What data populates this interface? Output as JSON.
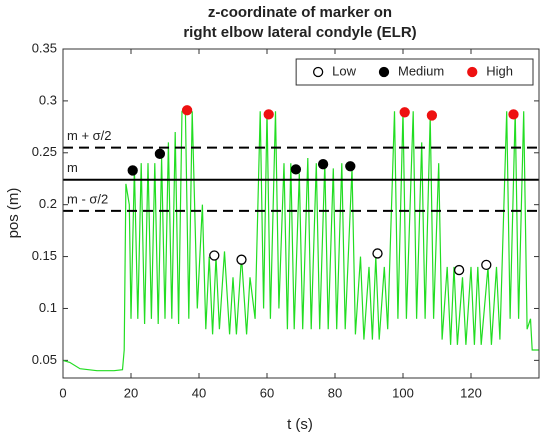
{
  "chart_data": {
    "type": "line",
    "title": [
      "z-coordinate of marker on",
      "right elbow lateral condyle (ELR)"
    ],
    "xlabel": "t (s)",
    "ylabel": "pos (m)",
    "xlim": [
      0,
      140
    ],
    "ylim": [
      0.033,
      0.35
    ],
    "xticks": [
      0,
      20,
      40,
      60,
      80,
      100,
      120
    ],
    "yticks": [
      0.05,
      0.1,
      0.15,
      0.2,
      0.25,
      0.3,
      0.35
    ],
    "legend": "upper right",
    "hlines": [
      {
        "label": "m + σ/2",
        "value": 0.255,
        "style": "dashed"
      },
      {
        "label": "m",
        "value": 0.224,
        "style": "solid"
      },
      {
        "label": "m - σ/2",
        "value": 0.194,
        "style": "dashed"
      }
    ],
    "series": [
      {
        "color": "#22dd22",
        "marker": "none",
        "x": [
          0,
          2,
          5,
          10,
          15,
          17.5,
          18,
          18.5,
          19.5,
          20,
          21,
          22,
          23,
          24,
          25,
          26,
          27,
          28,
          29,
          30,
          31,
          32,
          33,
          34,
          35,
          36,
          37,
          38,
          39.5,
          41,
          42,
          43,
          44,
          45,
          46,
          47.5,
          49,
          50,
          51,
          52.5,
          54,
          55,
          56.5,
          58,
          59,
          60,
          61,
          62.5,
          63.5,
          65,
          66,
          67,
          68,
          69.5,
          70.5,
          72,
          73,
          74.5,
          75.5,
          77,
          78,
          79.5,
          80.5,
          82,
          83,
          85,
          86,
          87.5,
          88.5,
          90,
          91,
          92,
          93,
          94.5,
          95.5,
          97.5,
          98.5,
          100,
          101,
          103,
          104,
          105.5,
          106.5,
          108,
          109,
          110.5,
          111.5,
          113,
          114,
          115,
          116,
          117.5,
          118.5,
          120,
          121,
          122,
          123,
          125,
          126,
          127.5,
          128.5,
          130.5,
          131.5,
          133,
          134,
          135.5,
          136.5,
          137.5,
          138,
          140
        ],
        "values": [
          0.05,
          0.048,
          0.042,
          0.04,
          0.04,
          0.041,
          0.06,
          0.22,
          0.2,
          0.09,
          0.235,
          0.09,
          0.24,
          0.085,
          0.24,
          0.09,
          0.24,
          0.085,
          0.245,
          0.09,
          0.26,
          0.09,
          0.27,
          0.085,
          0.29,
          0.29,
          0.09,
          0.29,
          0.1,
          0.2,
          0.08,
          0.15,
          0.075,
          0.15,
          0.08,
          0.155,
          0.075,
          0.13,
          0.075,
          0.15,
          0.075,
          0.13,
          0.09,
          0.29,
          0.1,
          0.29,
          0.09,
          0.29,
          0.1,
          0.24,
          0.08,
          0.24,
          0.08,
          0.23,
          0.08,
          0.245,
          0.08,
          0.24,
          0.08,
          0.24,
          0.08,
          0.235,
          0.08,
          0.24,
          0.08,
          0.235,
          0.075,
          0.15,
          0.07,
          0.14,
          0.07,
          0.15,
          0.07,
          0.14,
          0.08,
          0.29,
          0.09,
          0.29,
          0.09,
          0.29,
          0.09,
          0.26,
          0.09,
          0.285,
          0.09,
          0.24,
          0.07,
          0.14,
          0.065,
          0.14,
          0.065,
          0.13,
          0.065,
          0.14,
          0.065,
          0.14,
          0.065,
          0.14,
          0.065,
          0.14,
          0.07,
          0.29,
          0.09,
          0.29,
          0.09,
          0.29,
          0.08,
          0.09,
          0.06,
          0.06
        ]
      },
      {
        "name": "Low",
        "color": "#000000",
        "marker": "open",
        "x": [
          44.5,
          52.5,
          92.5,
          116.5,
          124.5
        ],
        "values": [
          0.151,
          0.147,
          0.153,
          0.137,
          0.142
        ]
      },
      {
        "name": "Medium",
        "color": "#000000",
        "marker": "filled",
        "x": [
          20.5,
          28.5,
          68.5,
          76.5,
          84.5
        ],
        "values": [
          0.233,
          0.249,
          0.234,
          0.239,
          0.237
        ]
      },
      {
        "name": "High",
        "color": "#ee1111",
        "marker": "filled",
        "x": [
          36.5,
          60.5,
          100.5,
          108.5,
          132.5
        ],
        "values": [
          0.291,
          0.287,
          0.289,
          0.286,
          0.287
        ]
      }
    ]
  }
}
